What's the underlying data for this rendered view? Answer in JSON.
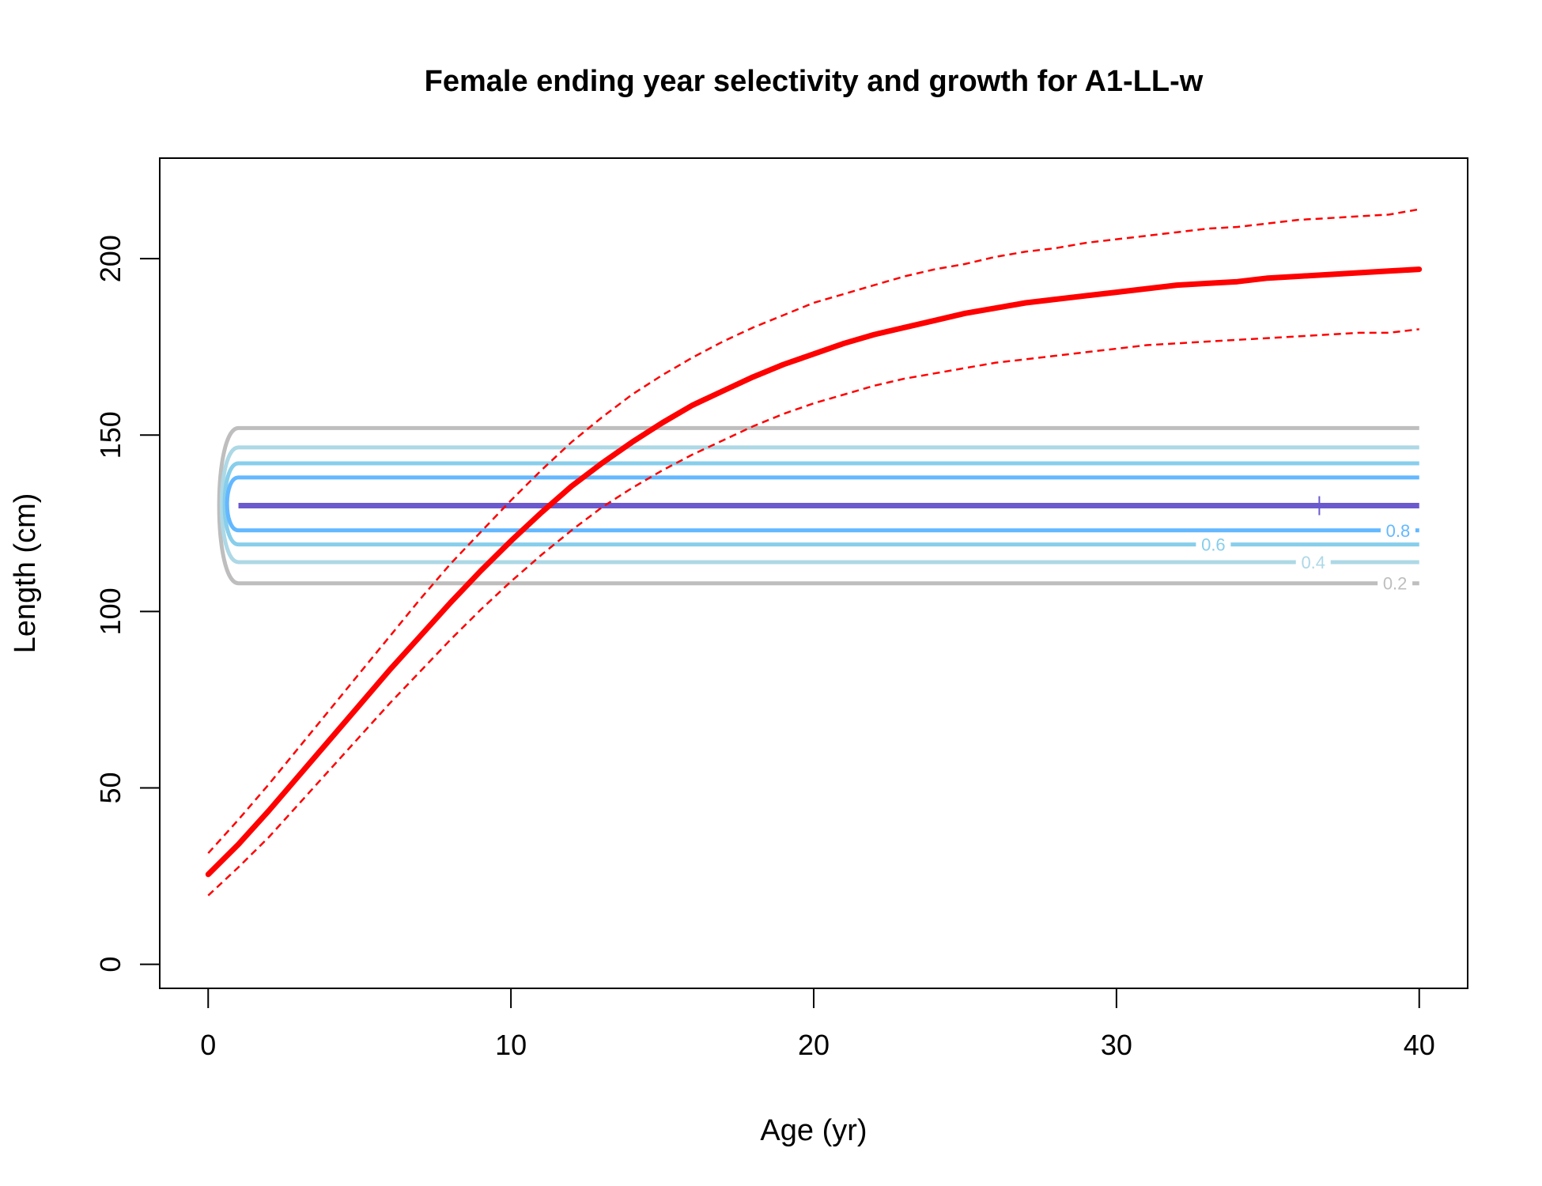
{
  "chart_data": {
    "type": "line",
    "title": "Female ending year selectivity and growth for A1-LL-w",
    "xlabel": "Age (yr)",
    "ylabel": "Length (cm)",
    "xlim": [
      -1.6,
      41.6
    ],
    "ylim": [
      -6.8,
      228.5
    ],
    "x_ticks": [
      0,
      10,
      20,
      30,
      40
    ],
    "y_ticks": [
      0,
      50,
      100,
      150,
      200
    ],
    "grid": false,
    "legend": "none",
    "growth": {
      "color": "#ff0000",
      "ages": [
        0,
        1,
        2,
        3,
        4,
        5,
        6,
        7,
        8,
        9,
        10,
        11,
        12,
        13,
        14,
        15,
        16,
        17,
        18,
        19,
        20,
        21,
        22,
        23,
        24,
        25,
        26,
        27,
        28,
        29,
        30,
        31,
        32,
        33,
        34,
        35,
        36,
        37,
        38,
        39,
        40
      ],
      "mean": [
        25.5,
        34,
        43.5,
        53.5,
        63.5,
        73.5,
        83.5,
        93,
        102.5,
        111.5,
        120,
        128,
        135.5,
        142,
        148,
        153.5,
        158.5,
        162.5,
        166.5,
        170,
        173,
        176,
        178.5,
        180.5,
        182.5,
        184.5,
        186,
        187.5,
        188.5,
        189.5,
        190.5,
        191.5,
        192.5,
        193,
        193.5,
        194.5,
        195,
        195.5,
        196,
        196.5,
        197
      ],
      "upper": [
        31.5,
        41,
        51,
        61.5,
        72,
        82.5,
        93,
        103.5,
        113.5,
        122.5,
        131.5,
        140,
        148,
        155,
        161.5,
        167,
        172,
        176.5,
        180.5,
        184,
        187.5,
        190,
        192.5,
        195,
        197,
        198.5,
        200.5,
        202,
        203,
        204.5,
        205.5,
        206.5,
        207.5,
        208.5,
        209,
        210,
        211,
        211.5,
        212,
        212.5,
        214
      ],
      "lower": [
        19.5,
        27.5,
        36,
        45.5,
        55,
        64.5,
        74,
        83,
        92,
        100.5,
        108.5,
        116,
        123,
        129.5,
        135,
        140,
        144.5,
        148.5,
        152.5,
        156,
        159,
        161.5,
        164,
        166,
        167.5,
        169,
        170.5,
        171.5,
        172.5,
        173.5,
        174.5,
        175.5,
        176,
        176.5,
        177,
        177.5,
        178,
        178.5,
        179,
        179,
        180
      ]
    },
    "selectivity_contours": [
      {
        "level": "0.2",
        "color": "#bebebe",
        "upper": 152,
        "lower": 108,
        "label_age": 39.2,
        "show_label": true
      },
      {
        "level": "0.4",
        "color": "#add8e6",
        "upper": 146.5,
        "lower": 114,
        "label_age": 36.5,
        "show_label": true
      },
      {
        "level": "0.6",
        "color": "#87ceeb",
        "upper": 142,
        "lower": 119,
        "label_age": 33.2,
        "show_label": true
      },
      {
        "level": "0.8",
        "color": "#63b8ff",
        "upper": 138,
        "lower": 123,
        "label_age": 39.3,
        "show_label": true
      },
      {
        "level": "1",
        "color": "#6a5acd",
        "upper": 130,
        "lower": 130,
        "label_age": 36,
        "show_label": false
      }
    ],
    "peak_marker": {
      "age": 36.7,
      "length": 130,
      "symbol": "+",
      "color": "#6a5acd"
    }
  }
}
